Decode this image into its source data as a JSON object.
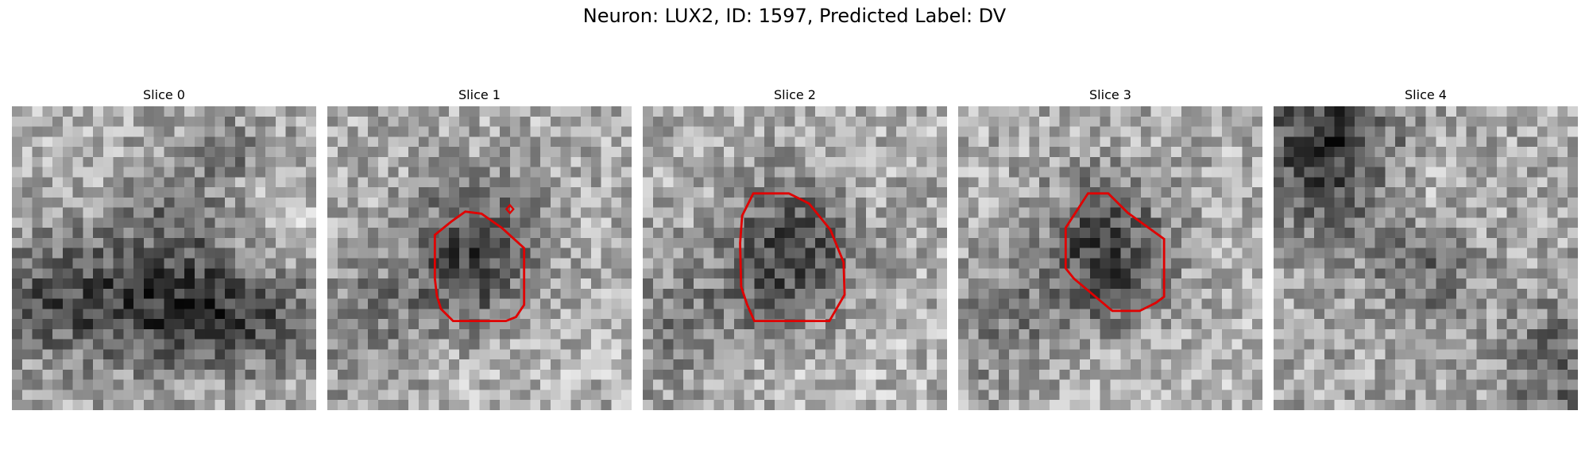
{
  "figure": {
    "title": "Neuron: LUX2, ID: 1597, Predicted Label: DV"
  },
  "panels": [
    {
      "title": "Slice 0",
      "image": "dark-band-lower-half",
      "contour": false
    },
    {
      "title": "Slice 1",
      "image": "dark-blob-center",
      "contour": true
    },
    {
      "title": "Slice 2",
      "image": "dark-blob-center",
      "contour": true
    },
    {
      "title": "Slice 3",
      "image": "dark-blob-center",
      "contour": true
    },
    {
      "title": "Slice 4",
      "image": "dark-corner-blob",
      "contour": false
    }
  ],
  "style": {
    "contour_color": "#e00000",
    "colormap": "gray"
  }
}
